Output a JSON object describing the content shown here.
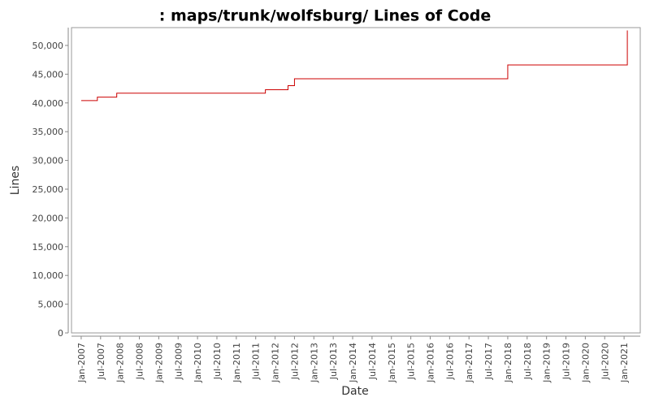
{
  "chart_data": {
    "type": "step-line",
    "title": ": maps/trunk/wolfsburg/ Lines of Code",
    "x_label": "Date",
    "y_label": "Lines",
    "x": [
      "2007-01",
      "2007-06",
      "2007-12",
      "2011-10",
      "2012-05",
      "2012-07",
      "2018-01",
      "2021-02"
    ],
    "series": [
      {
        "color": "#cc0000",
        "values": [
          40400,
          41000,
          41700,
          42300,
          43000,
          44200,
          46600,
          52600
        ]
      }
    ],
    "xlim": [
      "2006-10",
      "2021-06"
    ],
    "xticks": [
      {
        "value": "2007-01",
        "label": "Jan-2007"
      },
      {
        "value": "2007-07",
        "label": "Jul-2007"
      },
      {
        "value": "2008-01",
        "label": "Jan-2008"
      },
      {
        "value": "2008-07",
        "label": "Jul-2008"
      },
      {
        "value": "2009-01",
        "label": "Jan-2009"
      },
      {
        "value": "2009-07",
        "label": "Jul-2009"
      },
      {
        "value": "2010-01",
        "label": "Jan-2010"
      },
      {
        "value": "2010-07",
        "label": "Jul-2010"
      },
      {
        "value": "2011-01",
        "label": "Jan-2011"
      },
      {
        "value": "2011-07",
        "label": "Jul-2011"
      },
      {
        "value": "2012-01",
        "label": "Jan-2012"
      },
      {
        "value": "2012-07",
        "label": "Jul-2012"
      },
      {
        "value": "2013-01",
        "label": "Jan-2013"
      },
      {
        "value": "2013-07",
        "label": "Jul-2013"
      },
      {
        "value": "2014-01",
        "label": "Jan-2014"
      },
      {
        "value": "2014-07",
        "label": "Jul-2014"
      },
      {
        "value": "2015-01",
        "label": "Jan-2015"
      },
      {
        "value": "2015-07",
        "label": "Jul-2015"
      },
      {
        "value": "2016-01",
        "label": "Jan-2016"
      },
      {
        "value": "2016-07",
        "label": "Jul-2016"
      },
      {
        "value": "2017-01",
        "label": "Jan-2017"
      },
      {
        "value": "2017-07",
        "label": "Jul-2017"
      },
      {
        "value": "2018-01",
        "label": "Jan-2018"
      },
      {
        "value": "2018-07",
        "label": "Jul-2018"
      },
      {
        "value": "2019-01",
        "label": "Jan-2019"
      },
      {
        "value": "2019-07",
        "label": "Jul-2019"
      },
      {
        "value": "2020-01",
        "label": "Jan-2020"
      },
      {
        "value": "2020-07",
        "label": "Jul-2020"
      },
      {
        "value": "2021-01",
        "label": "Jan-2021"
      }
    ],
    "ylim": [
      0,
      53100
    ],
    "yticks": [
      0,
      {
        "value": 5000,
        "label": "5,000"
      },
      {
        "value": 10000,
        "label": "10,000"
      },
      {
        "value": 15000,
        "label": "15,000"
      },
      {
        "value": 20000,
        "label": "20,000"
      },
      {
        "value": 25000,
        "label": "25,000"
      },
      {
        "value": 30000,
        "label": "30,000"
      },
      {
        "value": 35000,
        "label": "35,000"
      },
      {
        "value": 40000,
        "label": "40,000"
      },
      {
        "value": 45000,
        "label": "45,000"
      },
      {
        "value": 50000,
        "label": "50,000"
      }
    ],
    "grid": false
  }
}
